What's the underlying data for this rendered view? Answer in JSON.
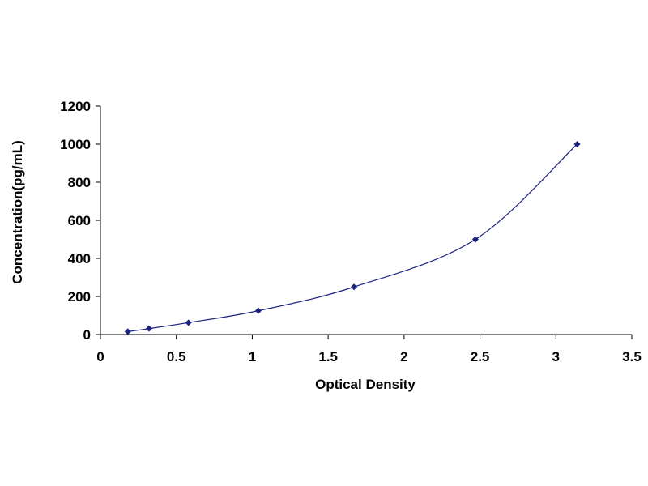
{
  "chart_data": {
    "type": "scatter",
    "title": "",
    "xlabel": "Optical Density",
    "ylabel": "Concentration(pg/mL)",
    "xlim": [
      0,
      3.5
    ],
    "ylim": [
      0,
      1200
    ],
    "x_ticks": [
      0,
      0.5,
      1,
      1.5,
      2,
      2.5,
      3,
      3.5
    ],
    "x_tick_labels": [
      "0",
      "0.5",
      "1",
      "1.5",
      "2",
      "2.5",
      "3",
      "3.5"
    ],
    "y_ticks": [
      0,
      200,
      400,
      600,
      800,
      1000,
      1200
    ],
    "y_tick_labels": [
      "0",
      "200",
      "400",
      "600",
      "800",
      "1000",
      "1200"
    ],
    "grid": false,
    "legend": "none",
    "series": [
      {
        "marker": "diamond",
        "color": "#1a237e",
        "trendline": "smooth",
        "x": [
          0.18,
          0.32,
          0.58,
          1.04,
          1.67,
          2.47,
          3.14
        ],
        "y": [
          15.6,
          31.2,
          62.5,
          125,
          250,
          500,
          1000
        ]
      }
    ]
  }
}
